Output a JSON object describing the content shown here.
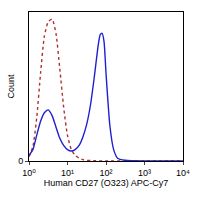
{
  "chart_data": {
    "type": "line",
    "x_label": "Human CD27 (O323) APC-Cy7",
    "y_label": "Count",
    "log": "x",
    "grid": false,
    "x": [
      1,
      1.26,
      1.58,
      2,
      2.51,
      3.16,
      3.98,
      5.01,
      6.31,
      7.94,
      10,
      12.6,
      15.8,
      20,
      25.1,
      31.6,
      39.8,
      50.1,
      63.1,
      70.8,
      79.4,
      89.1,
      100,
      126,
      158,
      200,
      316,
      1000,
      10000
    ],
    "series": [
      {
        "color": "#b03030",
        "line_style": "dot",
        "values": [
          3,
          10,
          30,
          62,
          88,
          98,
          100,
          90,
          65,
          38,
          18,
          8,
          4,
          2,
          1,
          0.5,
          0.3,
          0.2,
          0.1,
          0.1,
          0.1,
          0,
          0,
          0,
          0,
          0,
          0,
          0,
          0
        ]
      },
      {
        "color": "#2020d0",
        "line_style": "solid",
        "values": [
          4,
          8,
          18,
          28,
          34,
          36,
          32,
          24,
          16,
          11,
          8,
          7,
          8,
          11,
          17,
          26,
          40,
          60,
          82,
          89,
          90,
          84,
          62,
          25,
          8,
          2,
          0.5,
          0,
          0
        ]
      }
    ],
    "xlim": [
      1,
      10000
    ],
    "xticks": [
      {
        "value": 1,
        "label": "10⁰"
      },
      {
        "value": 10,
        "label": "10¹"
      },
      {
        "value": 100,
        "label": "10²"
      },
      {
        "value": 1000,
        "label": "10³"
      },
      {
        "value": 10000,
        "label": "10⁴"
      }
    ],
    "ylim": [
      0,
      105
    ],
    "yticks": [
      0
    ]
  }
}
